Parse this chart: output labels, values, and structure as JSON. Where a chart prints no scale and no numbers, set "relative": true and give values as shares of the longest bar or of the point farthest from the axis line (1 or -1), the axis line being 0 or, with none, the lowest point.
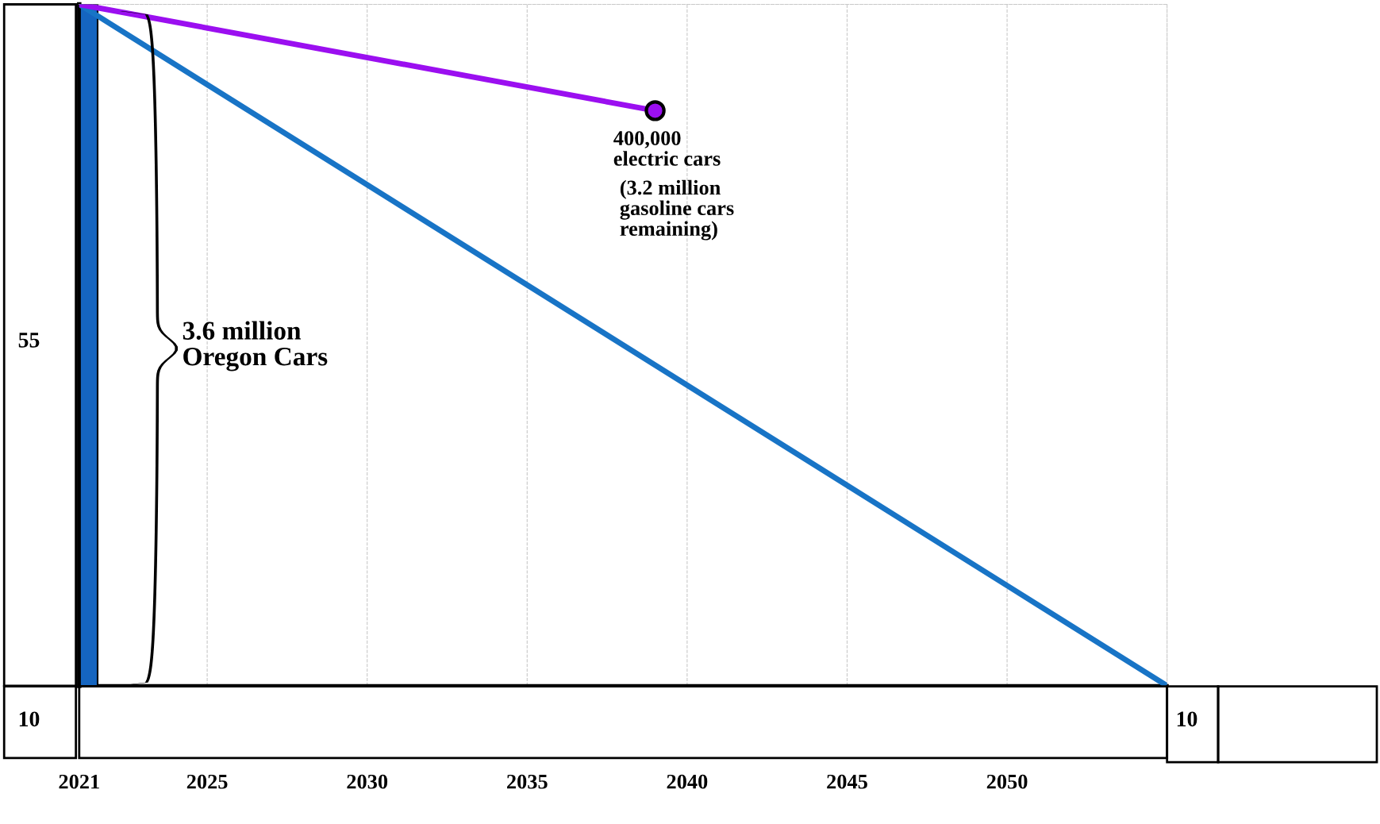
{
  "chart_data": {
    "type": "line",
    "relative": true,
    "xlim": [
      2021,
      2055
    ],
    "xticks": [
      2021,
      2025,
      2030,
      2035,
      2040,
      2045,
      2050
    ],
    "grid": "x",
    "marker": "none",
    "line_style": "solid",
    "series": [
      {
        "type": "bar",
        "color": "#1565c0",
        "x": [
          2021.3
        ],
        "values": [
          1
        ]
      },
      {
        "color": "#1874c6",
        "x": [
          2021,
          2055
        ],
        "values": [
          1,
          0
        ]
      },
      {
        "color": "#9b0ff0",
        "x": [
          2021,
          2039
        ],
        "values": [
          1,
          0.844
        ],
        "marker": "circle"
      }
    ],
    "annotations": [
      {
        "text": "400,000\nelectric cars",
        "x": 2039,
        "y": 0.844
      },
      "(3.2 million\ngasoline cars\nremaining)",
      "3.6 million\nOregon Cars",
      "55",
      "10",
      "10"
    ]
  }
}
